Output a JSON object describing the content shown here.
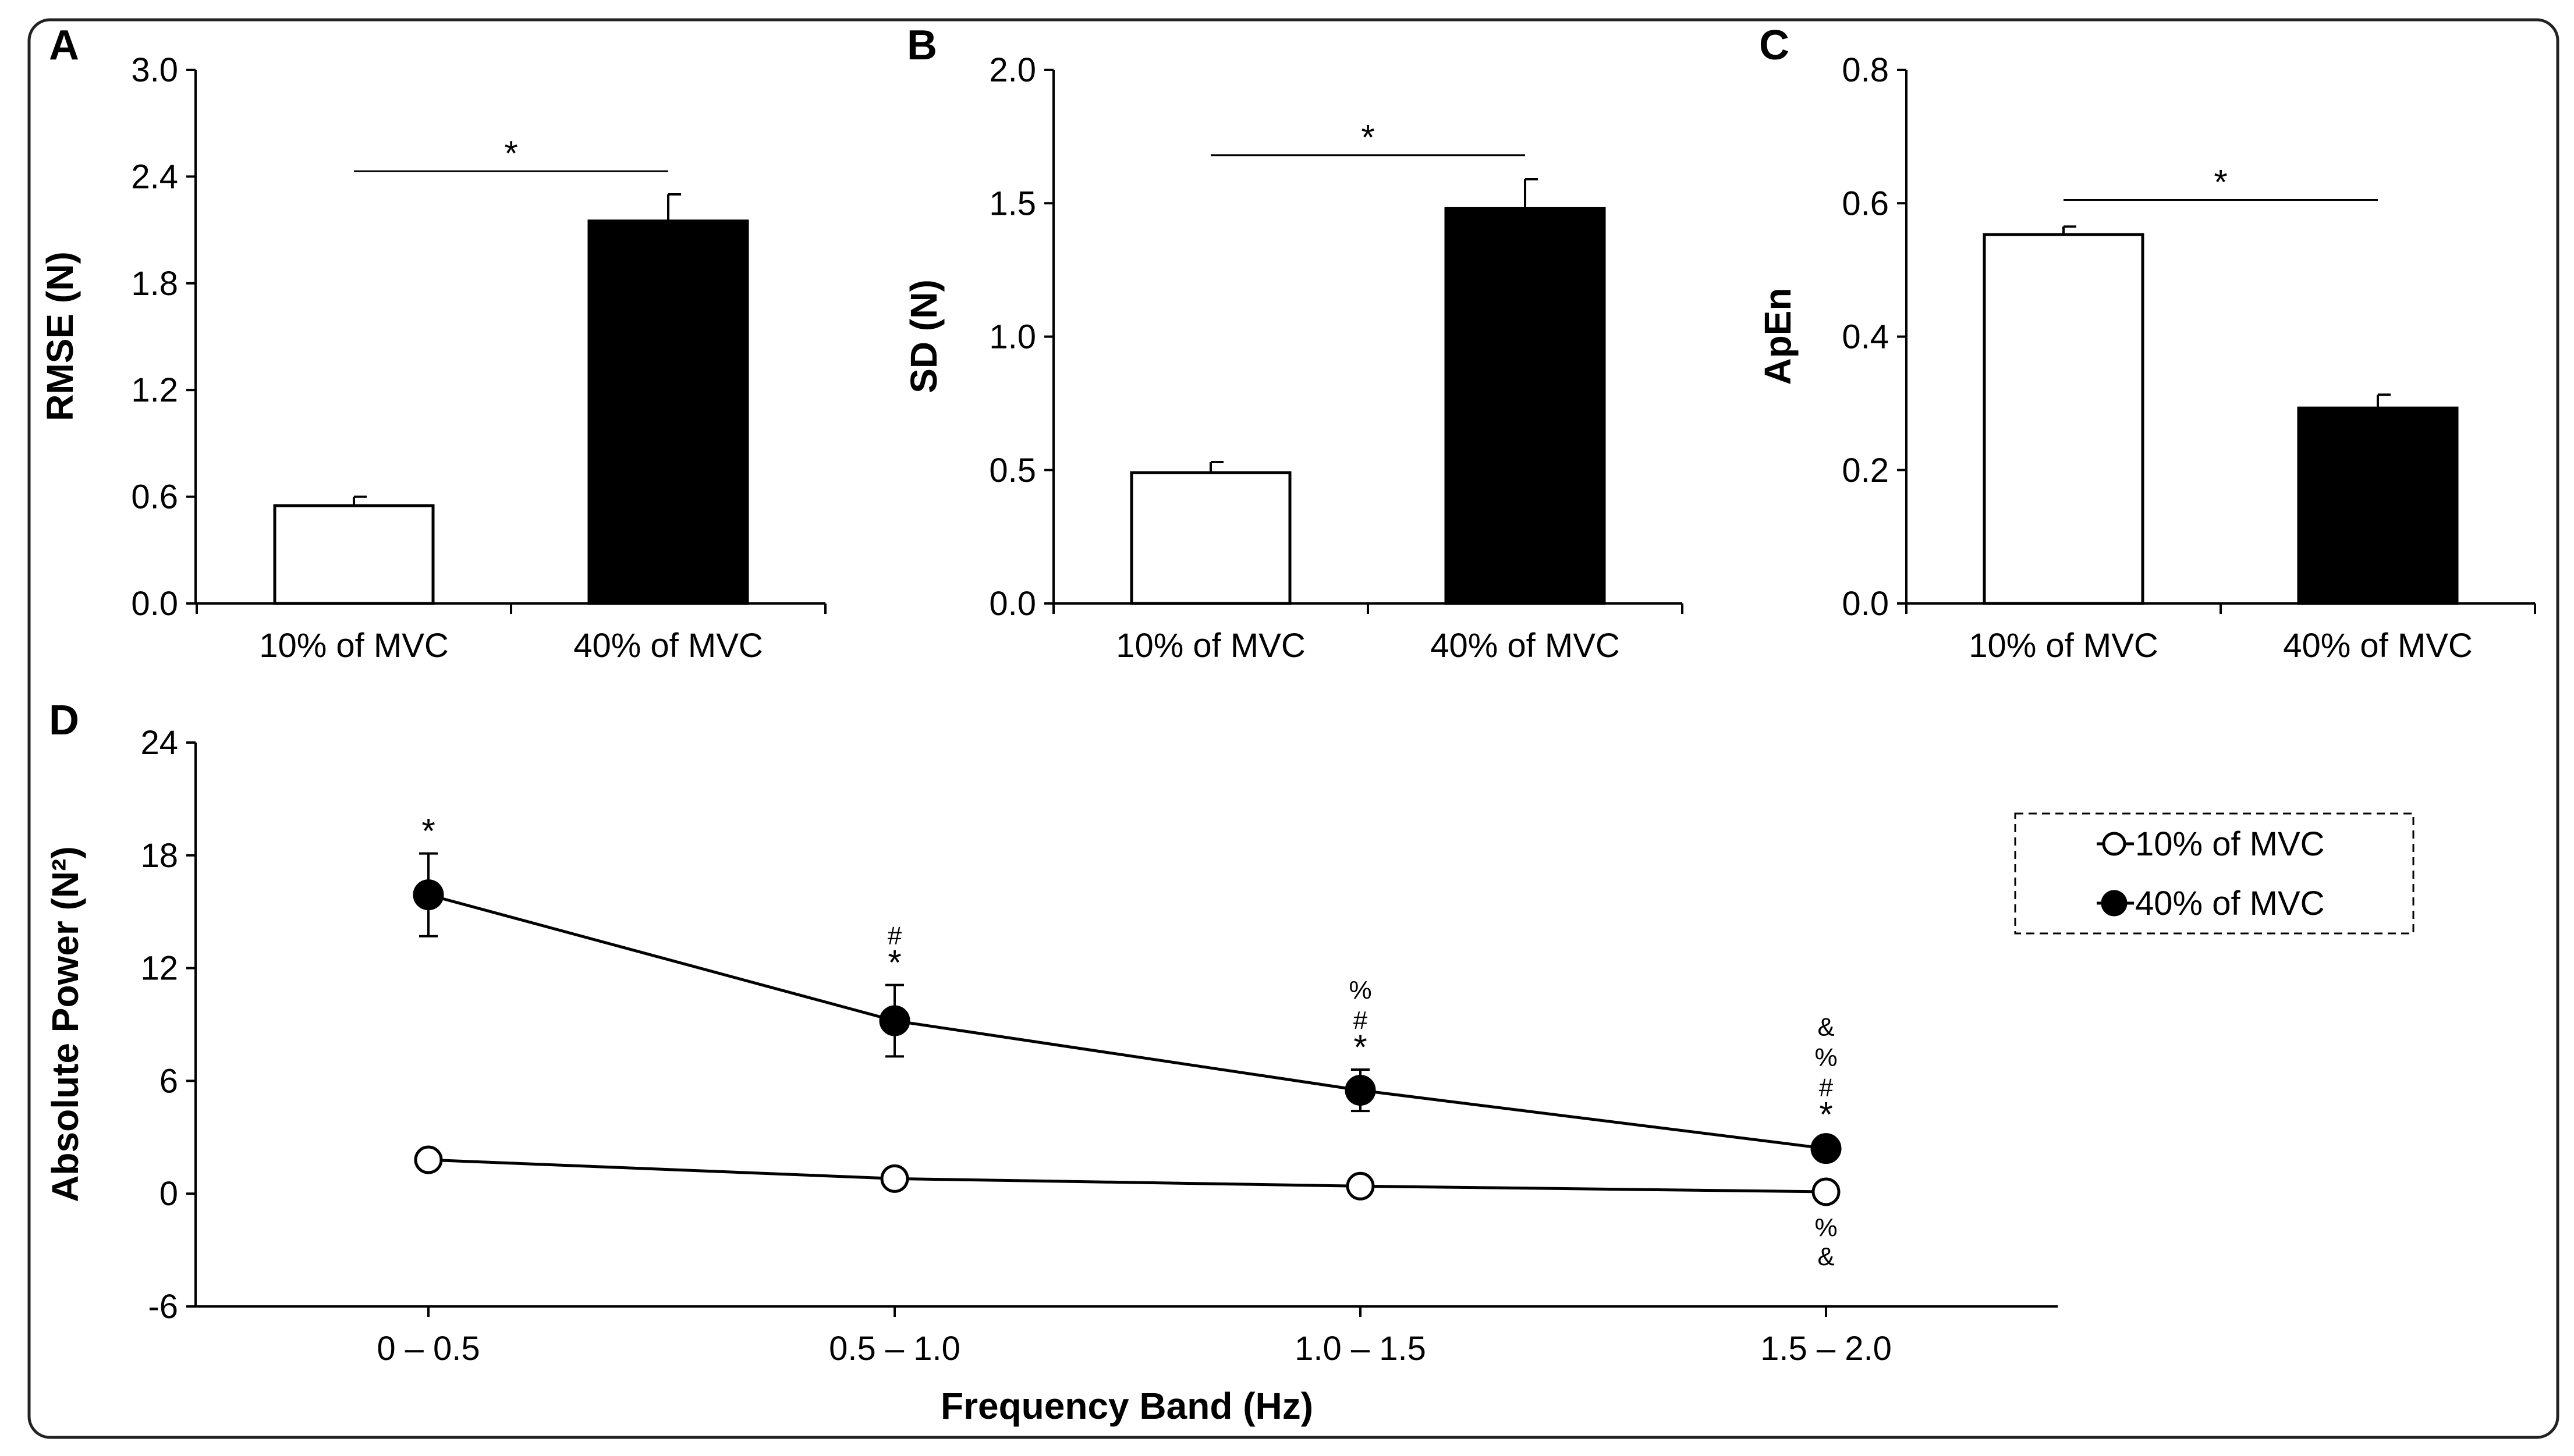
{
  "figure": {
    "border_color": "#222222"
  },
  "chart_data": [
    {
      "id": "A",
      "panel_label": "A",
      "type": "bar",
      "categories": [
        "10% of MVC",
        "40% of MVC"
      ],
      "values": [
        0.55,
        2.15
      ],
      "errors": [
        0.05,
        0.15
      ],
      "bar_colors": [
        "#ffffff",
        "#000000"
      ],
      "ylabel": "RMSE (N)",
      "ylim": [
        0,
        3.0
      ],
      "yticks": [
        0,
        0.6,
        1.2,
        1.8,
        2.4,
        3.0
      ],
      "ytick_labels": [
        "0.0",
        "0.6",
        "1.2",
        "1.8",
        "2.4",
        "3.0"
      ],
      "significance": {
        "text": "*",
        "level": 2.43
      }
    },
    {
      "id": "B",
      "panel_label": "B",
      "type": "bar",
      "categories": [
        "10% of MVC",
        "40% of MVC"
      ],
      "values": [
        0.49,
        1.48
      ],
      "errors": [
        0.04,
        0.11
      ],
      "bar_colors": [
        "#ffffff",
        "#000000"
      ],
      "ylabel": "SD (N)",
      "ylim": [
        0,
        2.0
      ],
      "yticks": [
        0,
        0.5,
        1.0,
        1.5,
        2.0
      ],
      "ytick_labels": [
        "0.0",
        "0.5",
        "1.0",
        "1.5",
        "2.0"
      ],
      "significance": {
        "text": "*",
        "level": 1.68
      }
    },
    {
      "id": "C",
      "panel_label": "C",
      "type": "bar",
      "categories": [
        "10% of MVC",
        "40% of MVC"
      ],
      "values": [
        0.553,
        0.293
      ],
      "errors": [
        0.012,
        0.02
      ],
      "bar_colors": [
        "#ffffff",
        "#000000"
      ],
      "ylabel": "ApEn",
      "ylim": [
        0,
        0.8
      ],
      "yticks": [
        0,
        0.2,
        0.4,
        0.6,
        0.8
      ],
      "ytick_labels": [
        "0.0",
        "0.2",
        "0.4",
        "0.6",
        "0.8"
      ],
      "significance": {
        "text": "*",
        "level": 0.605
      }
    },
    {
      "id": "D",
      "panel_label": "D",
      "type": "line",
      "categories": [
        "0 – 0.5",
        "0.5 – 1.0",
        "1.0 – 1.5",
        "1.5 – 2.0"
      ],
      "xlabel": "Frequency Band (Hz)",
      "ylabel": "Absolute Power (N²)",
      "ylim": [
        -6,
        24
      ],
      "yticks": [
        -6,
        0,
        6,
        12,
        18,
        24
      ],
      "ytick_labels": [
        "-6",
        "0",
        "6",
        "12",
        "18",
        "24"
      ],
      "legend_position": "top-right",
      "series": [
        {
          "name": "10% of MVC",
          "marker": "open-circle",
          "values": [
            1.8,
            0.8,
            0.4,
            0.1
          ],
          "errors": [
            0,
            0,
            0,
            0
          ],
          "annotations_below": [
            [],
            [],
            [],
            [
              "%",
              "&"
            ]
          ]
        },
        {
          "name": "40% of MVC",
          "marker": "filled-circle",
          "values": [
            15.9,
            9.2,
            5.5,
            2.4
          ],
          "errors": [
            2.2,
            1.9,
            1.1,
            0
          ],
          "annotations_above": [
            [
              "*"
            ],
            [
              "#",
              "*"
            ],
            [
              "%",
              "#",
              "*"
            ],
            [
              "&",
              "%",
              "#",
              "*"
            ]
          ]
        }
      ]
    }
  ]
}
